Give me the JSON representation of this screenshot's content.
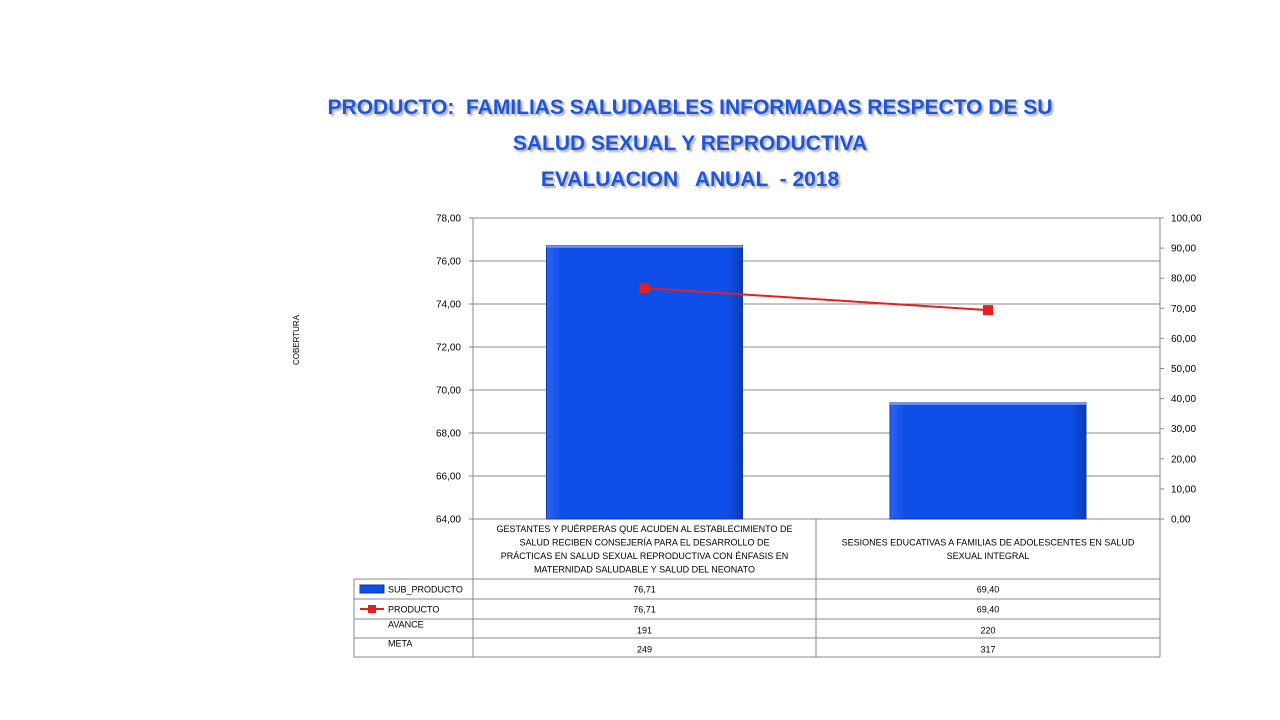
{
  "title_lines": [
    "PRODUCTO:  FAMILIAS SALUDABLES INFORMADAS RESPECTO DE SU",
    "SALUD SEXUAL Y REPRODUCTIVA",
    "EVALUACION   ANUAL  - 2018"
  ],
  "colors": {
    "title": "#1f56d8",
    "bar": "#0f4ee8",
    "line": "#e61e1e"
  },
  "chart_data": {
    "type": "bar",
    "title": "PRODUCTO:  FAMILIAS SALUDABLES INFORMADAS RESPECTO DE SU SALUD SEXUAL Y REPRODUCTIVA EVALUACION   ANUAL  - 2018",
    "ylabel": "COBERTURA",
    "categories": [
      [
        "GESTANTES Y PUÉRPERAS QUE ACUDEN AL ESTABLECIMIENTO DE",
        "SALUD RECIBEN CONSEJERÍA PARA EL DESARROLLO DE",
        "PRÁCTICAS EN SALUD SEXUAL REPRODUCTIVA CON ÉNFASIS EN",
        "MATERNIDAD SALUDABLE Y SALUD DEL NEONATO"
      ],
      [
        "SESIONES EDUCATIVAS A FAMILIAS DE ADOLESCENTES EN SALUD",
        "SEXUAL INTEGRAL"
      ]
    ],
    "ylim_left": [
      64,
      78
    ],
    "yticks_left": [
      "64,00",
      "66,00",
      "68,00",
      "70,00",
      "72,00",
      "74,00",
      "76,00",
      "78,00"
    ],
    "ylim_right": [
      0,
      100
    ],
    "yticks_right": [
      "0,00",
      "10,00",
      "20,00",
      "30,00",
      "40,00",
      "50,00",
      "60,00",
      "70,00",
      "80,00",
      "90,00",
      "100,00"
    ],
    "grid": true,
    "series": [
      {
        "name": "SUB_PRODUCTO",
        "type": "bar",
        "axis": "left",
        "values": [
          76.71,
          69.4
        ],
        "labels": [
          "76,71",
          "69,40"
        ]
      },
      {
        "name": "PRODUCTO",
        "type": "line",
        "axis": "right",
        "values": [
          76.71,
          69.4
        ],
        "labels": [
          "76,71",
          "69,40"
        ]
      }
    ],
    "table_rows": [
      {
        "name": "AVANCE",
        "labels": [
          "191",
          "220"
        ]
      },
      {
        "name": "META",
        "labels": [
          "249",
          "317"
        ]
      }
    ]
  }
}
